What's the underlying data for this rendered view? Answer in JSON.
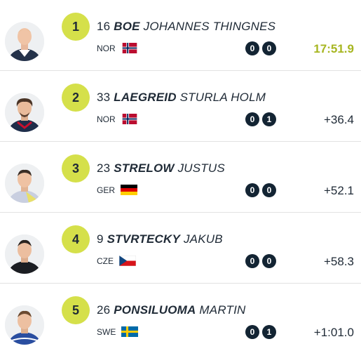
{
  "results": [
    {
      "rank": "1",
      "bib": "16",
      "last_name": "BOE",
      "first_name": "JOHANNES THINGNES",
      "nation": "NOR",
      "flag": "norway-flag",
      "shots": [
        "0",
        "0"
      ],
      "time": "17:51.9",
      "leader": true
    },
    {
      "rank": "2",
      "bib": "33",
      "last_name": "LAEGREID",
      "first_name": "STURLA HOLM",
      "nation": "NOR",
      "flag": "norway-flag",
      "shots": [
        "0",
        "1"
      ],
      "time": "+36.4",
      "leader": false
    },
    {
      "rank": "3",
      "bib": "23",
      "last_name": "STRELOW",
      "first_name": "JUSTUS",
      "nation": "GER",
      "flag": "germany-flag",
      "shots": [
        "0",
        "0"
      ],
      "time": "+52.1",
      "leader": false
    },
    {
      "rank": "4",
      "bib": "9",
      "last_name": "STVRTECKY",
      "first_name": "JAKUB",
      "nation": "CZE",
      "flag": "czech-flag",
      "shots": [
        "0",
        "0"
      ],
      "time": "+58.3",
      "leader": false
    },
    {
      "rank": "5",
      "bib": "26",
      "last_name": "PONSILUOMA",
      "first_name": "MARTIN",
      "nation": "SWE",
      "flag": "sweden-flag",
      "shots": [
        "0",
        "1"
      ],
      "time": "+1:01.0",
      "leader": false
    }
  ],
  "colors": {
    "rank_badge": "#d5e04a",
    "leader_time": "#a7b621",
    "shot_badge": "#132433",
    "text": "#1f2a36"
  }
}
